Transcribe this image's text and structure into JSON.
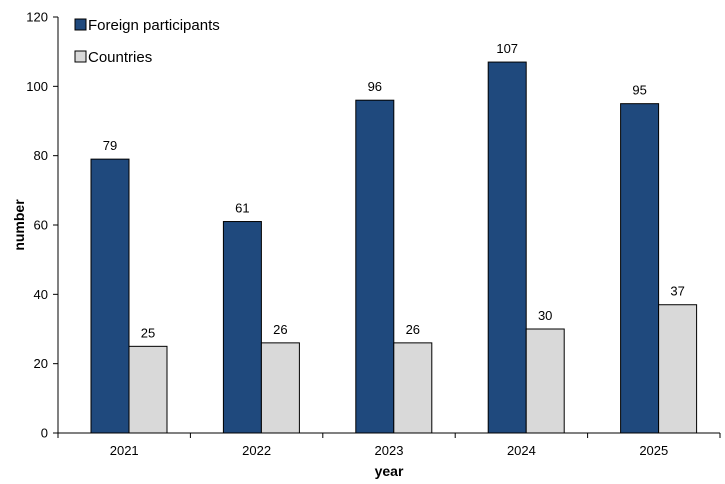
{
  "chart_data": {
    "type": "bar",
    "title": "",
    "xlabel": "year",
    "ylabel": "number",
    "categories": [
      "2021",
      "2022",
      "2023",
      "2024",
      "2025"
    ],
    "series": [
      {
        "name": "Foreign participants",
        "values": [
          79,
          61,
          96,
          107,
          95
        ],
        "color": "#1f497d"
      },
      {
        "name": "Countries",
        "values": [
          25,
          26,
          26,
          30,
          37
        ],
        "color": "#d9d9d9"
      }
    ],
    "ylim": [
      0,
      120
    ],
    "yticks": [
      0,
      20,
      40,
      60,
      80,
      100,
      120
    ],
    "grid": false,
    "legend_position": "top-left",
    "data_labels": true
  }
}
